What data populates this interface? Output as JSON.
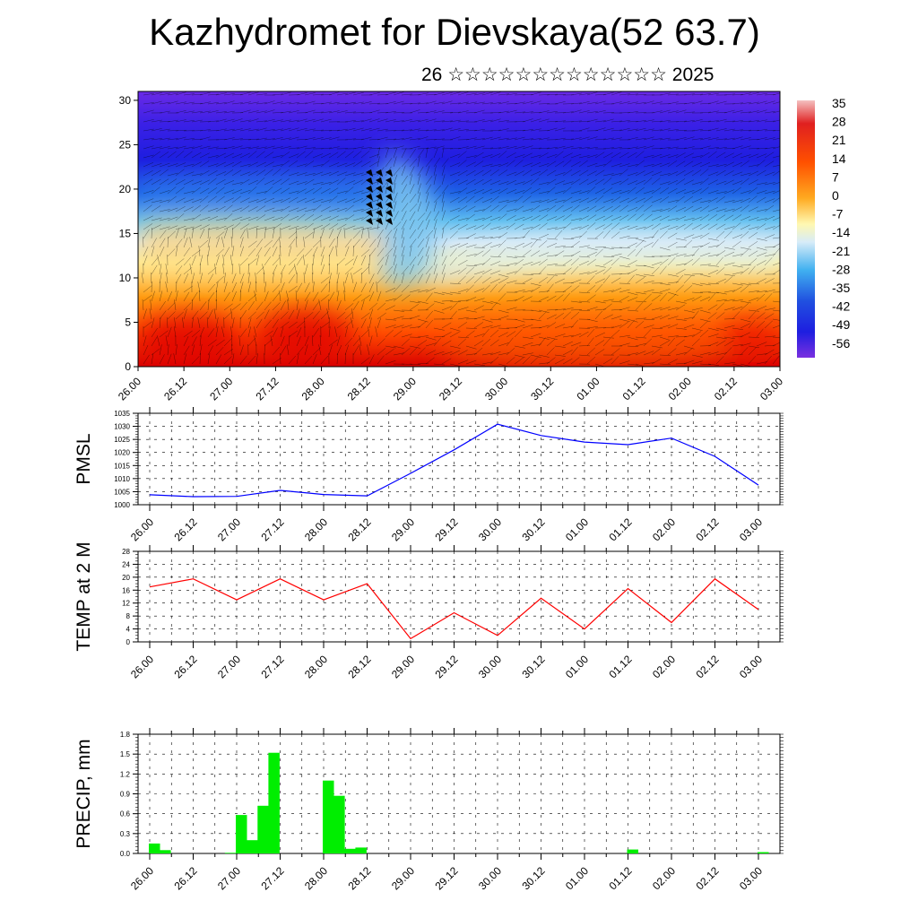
{
  "header": {
    "title": "Kazhydromet for Dievskaya(52 63.7)",
    "subtitle": "26 ☆☆☆☆☆☆☆☆☆☆☆☆☆ 2025"
  },
  "time_labels": [
    "26.00",
    "26.12",
    "27.00",
    "27.12",
    "28.00",
    "28.12",
    "29.00",
    "29.12",
    "30.00",
    "30.12",
    "01.00",
    "01.12",
    "02.00",
    "02.12",
    "03.00"
  ],
  "colorbar": {
    "labels": [
      "35",
      "28",
      "21",
      "14",
      "7",
      "0",
      "-7",
      "-14",
      "-21",
      "-28",
      "-35",
      "-42",
      "-49",
      "-56"
    ]
  },
  "colors": {
    "pmsl_line": "#0000ff",
    "temp_line": "#ff0000",
    "precip_bar": "#00ee00"
  },
  "chart_data": [
    {
      "type": "heatmap",
      "title": "Kazhydromet for Dievskaya(52 63.7)",
      "subtitle": "26 ☆☆☆☆☆☆☆☆☆☆☆☆☆ 2025",
      "x_labels": [
        "26.00",
        "26.12",
        "27.00",
        "27.12",
        "28.00",
        "28.12",
        "29.00",
        "29.12",
        "30.00",
        "30.12",
        "01.00",
        "01.12",
        "02.00",
        "02.12",
        "03.00"
      ],
      "yticks": [
        0,
        5,
        10,
        15,
        20,
        25,
        30
      ],
      "ylim": [
        0,
        31
      ],
      "color_scale": [
        35,
        28,
        21,
        14,
        7,
        0,
        -7,
        -14,
        -21,
        -28,
        -35,
        -42,
        -49,
        -56
      ],
      "overlay": "wind barbs"
    },
    {
      "type": "line",
      "ylabel": "PMSL",
      "ylim": [
        1000,
        1035
      ],
      "yticks": [
        "1000",
        "1005",
        "1010",
        "1015",
        "1020",
        "1025",
        "1030",
        "1035"
      ],
      "x": [
        "26.00",
        "26.12",
        "27.00",
        "27.12",
        "28.00",
        "28.12",
        "29.00",
        "29.12",
        "30.00",
        "30.12",
        "01.00",
        "01.12",
        "02.00",
        "02.12",
        "03.00"
      ],
      "series": [
        {
          "values": [
            1003.8,
            1003.1,
            1003.2,
            1005.5,
            1003.9,
            1003.4,
            1012.0,
            1021.0,
            1030.8,
            1026.5,
            1024.0,
            1023.0,
            1025.5,
            1018.5,
            1007.5
          ]
        }
      ]
    },
    {
      "type": "line",
      "ylabel": "TEMP at 2 M",
      "ylim": [
        0,
        28
      ],
      "yticks": [
        "0",
        "4",
        "8",
        "12",
        "16",
        "20",
        "24",
        "28"
      ],
      "x": [
        "26.00",
        "26.12",
        "27.00",
        "27.12",
        "28.00",
        "28.12",
        "29.00",
        "29.12",
        "30.00",
        "30.12",
        "01.00",
        "01.12",
        "02.00",
        "02.12",
        "03.00"
      ],
      "series": [
        {
          "values": [
            17.0,
            19.5,
            13.0,
            19.5,
            13.0,
            18.0,
            1.0,
            9.0,
            2.0,
            13.5,
            4.0,
            16.5,
            6.0,
            19.5,
            10.0
          ]
        }
      ]
    },
    {
      "type": "bar",
      "ylabel": "PRECIP, mm",
      "ylim": [
        0,
        1.8
      ],
      "yticks": [
        "0.0",
        "0.3",
        "0.6",
        "0.9",
        "1.2",
        "1.5",
        "1.8"
      ],
      "x_labels": [
        "26.00",
        "26.12",
        "27.00",
        "27.12",
        "28.00",
        "28.12",
        "29.00",
        "29.12",
        "30.00",
        "30.12",
        "01.00",
        "01.12",
        "02.00",
        "02.12",
        "03.00"
      ],
      "bars": [
        {
          "t": 0.0,
          "value": 0.15
        },
        {
          "t": 0.25,
          "value": 0.05
        },
        {
          "t": 1.75,
          "value": 0.01
        },
        {
          "t": 2.0,
          "value": 0.58
        },
        {
          "t": 2.25,
          "value": 0.2
        },
        {
          "t": 2.5,
          "value": 0.72
        },
        {
          "t": 2.75,
          "value": 1.52
        },
        {
          "t": 4.0,
          "value": 1.1
        },
        {
          "t": 4.25,
          "value": 0.87
        },
        {
          "t": 4.5,
          "value": 0.07
        },
        {
          "t": 4.75,
          "value": 0.09
        },
        {
          "t": 11.0,
          "value": 0.06
        },
        {
          "t": 14.0,
          "value": 0.02
        }
      ]
    }
  ]
}
